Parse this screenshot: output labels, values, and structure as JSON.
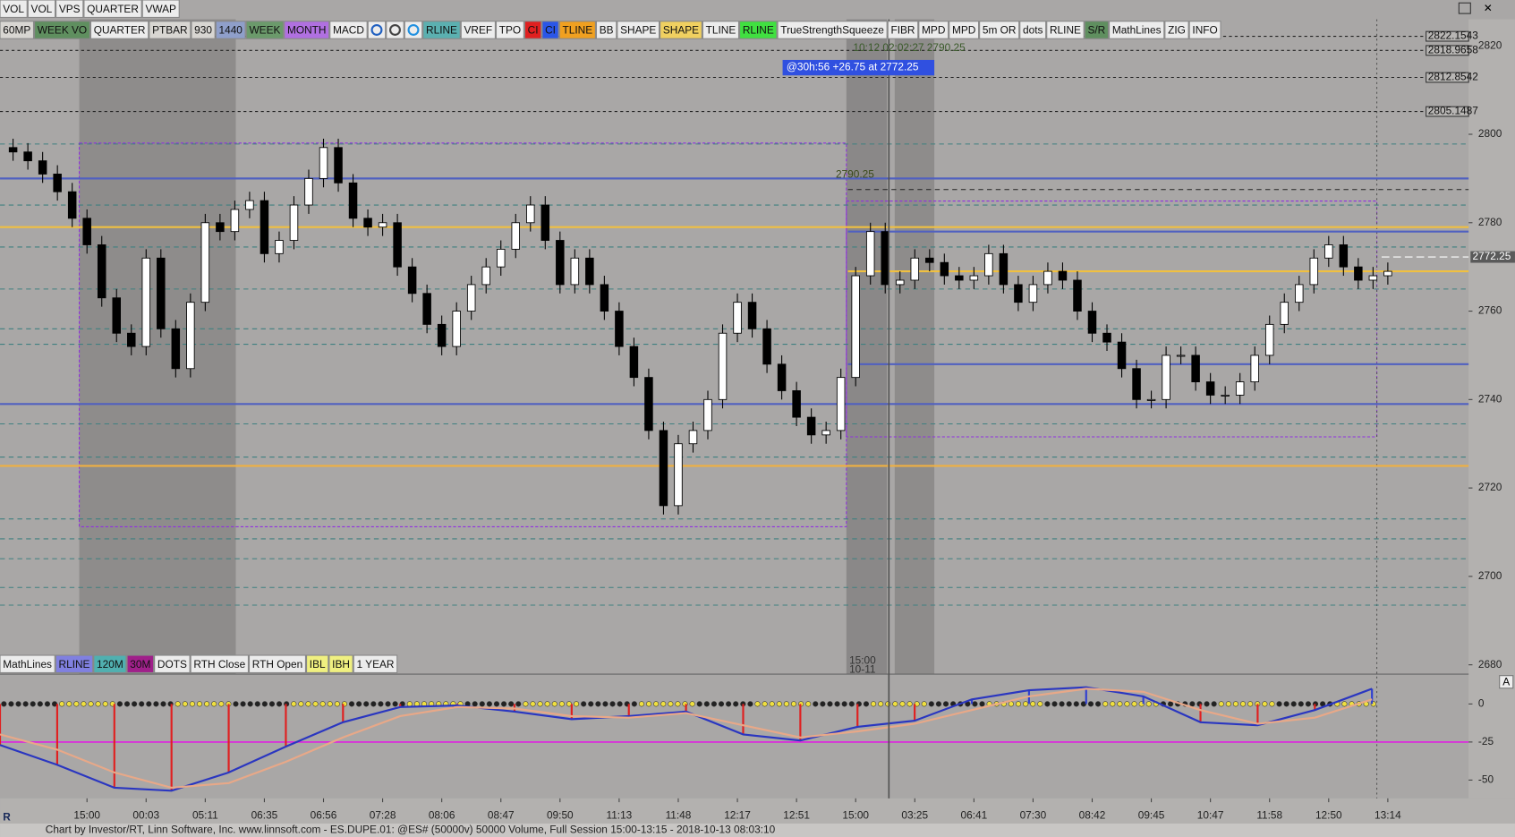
{
  "toolbar_top": [
    {
      "label": "VOL",
      "color": "#ececec"
    },
    {
      "label": "VOL",
      "color": "#ececec"
    },
    {
      "label": "VPS",
      "color": "#ececec"
    },
    {
      "label": "QUARTER",
      "color": "#ececec"
    },
    {
      "label": "VWAP",
      "color": "#ececec"
    }
  ],
  "toolbar_main": [
    {
      "label": "60MP",
      "color": "#d8d6d2"
    },
    {
      "label": "WEEK VO",
      "color": "#5f8f5f"
    },
    {
      "label": "QUARTER",
      "color": "#ececec"
    },
    {
      "label": "PTBAR",
      "color": "#d8d6d2"
    },
    {
      "label": "930",
      "color": "#d8d6d2"
    },
    {
      "label": "1440",
      "color": "#8f9fca"
    },
    {
      "label": "WEEK",
      "color": "#6b9a6b"
    },
    {
      "label": "MONTH",
      "color": "#b070e0"
    },
    {
      "label": "MACD",
      "color": "#ececec"
    },
    {
      "label": "RLINE",
      "color": "#5bb0b0"
    },
    {
      "label": "VREF",
      "color": "#ececec"
    },
    {
      "label": "TPO",
      "color": "#ececec"
    },
    {
      "label": "CI",
      "color": "#e02020"
    },
    {
      "label": "CI",
      "color": "#2a56e8"
    },
    {
      "label": "TLINE",
      "color": "#f0a020"
    },
    {
      "label": "BB",
      "color": "#ececec"
    },
    {
      "label": "SHAPE",
      "color": "#ececec"
    },
    {
      "label": "SHAPE",
      "color": "#f0d060"
    },
    {
      "label": "TLINE",
      "color": "#ececec"
    },
    {
      "label": "RLINE",
      "color": "#40e040"
    },
    {
      "label": "TrueStrengthSqueeze",
      "color": "#ececec"
    },
    {
      "label": "FIBR",
      "color": "#ececec"
    },
    {
      "label": "MPD",
      "color": "#ececec"
    },
    {
      "label": "MPD",
      "color": "#ececec"
    },
    {
      "label": "5m OR",
      "color": "#ececec"
    },
    {
      "label": "dots",
      "color": "#ececec"
    },
    {
      "label": "RLINE",
      "color": "#ececec"
    },
    {
      "label": "S/R",
      "color": "#5f8f5f"
    },
    {
      "label": "MathLines",
      "color": "#ececec"
    },
    {
      "label": "ZIG",
      "color": "#ececec"
    },
    {
      "label": "INFO",
      "color": "#ececec"
    }
  ],
  "toolbar_bottom": [
    {
      "label": "MathLines",
      "color": "#ececec"
    },
    {
      "label": "RLINE",
      "color": "#8080e0"
    },
    {
      "label": "120M",
      "color": "#50b0b0"
    },
    {
      "label": "30M",
      "color": "#a0208a"
    },
    {
      "label": "DOTS",
      "color": "#ececec"
    },
    {
      "label": "RTH Close",
      "color": "#ececec"
    },
    {
      "label": "RTH Open",
      "color": "#ececec"
    },
    {
      "label": "IBL",
      "color": "#f0f080"
    },
    {
      "label": "IBH",
      "color": "#f0f080"
    },
    {
      "label": "1 YEAR",
      "color": "#ececec"
    }
  ],
  "annotations": {
    "timer": "10:12 02:02:27 2790.25",
    "info": "@30h:56 +26.75 at 2772.25",
    "level": "2790.25",
    "session_time": "15:00",
    "session_date": "10-11",
    "axis_mode": "A"
  },
  "footer": "Chart by Investor/RT, Linn Software, Inc. www.linnsoft.com - ES.DUPE.01: @ES# (50000v) 50000 Volume, Full Session 15:00-13:15 - 2018-10-13 08:03:10",
  "logo": "R",
  "chart_data": [
    {
      "type": "candlestick",
      "up_color": "#ffffff",
      "down_color": "#000000",
      "categories": [
        null,
        null,
        null,
        null,
        null,
        "15:00",
        null,
        null,
        null,
        "00:03",
        null,
        null,
        null,
        "05:11",
        null,
        null,
        null,
        "06:35",
        null,
        null,
        null,
        "06:56",
        null,
        null,
        null,
        "07:28",
        null,
        null,
        null,
        "08:06",
        null,
        null,
        null,
        "08:47",
        null,
        null,
        null,
        "09:50",
        null,
        null,
        null,
        "11:13",
        null,
        null,
        null,
        "11:48",
        null,
        null,
        null,
        "12:17",
        null,
        null,
        null,
        "12:51",
        null,
        null,
        null,
        "15:00",
        null,
        null,
        null,
        "03:25",
        null,
        null,
        null,
        "06:41",
        null,
        null,
        null,
        "07:30",
        null,
        null,
        null,
        "08:42",
        null,
        null,
        null,
        "09:45",
        null,
        null,
        null,
        "10:47",
        null,
        null,
        null,
        "11:58",
        null,
        null,
        null,
        "12:50",
        null,
        null,
        null,
        "13:14"
      ],
      "open": [
        2797,
        2796,
        2794,
        2791,
        2787,
        2781,
        2775,
        2763,
        2755,
        2752,
        2772,
        2756,
        2747,
        2762,
        2780,
        2778,
        2783,
        2785,
        2773,
        2776,
        2784,
        2790,
        2797,
        2789,
        2781,
        2779,
        2780,
        2770,
        2764,
        2757,
        2752,
        2760,
        2766,
        2770,
        2774,
        2780,
        2784,
        2776,
        2766,
        2772,
        2766,
        2760,
        2752,
        2745,
        2733,
        2716,
        2730,
        2733,
        2740,
        2755,
        2762,
        2756,
        2748,
        2742,
        2736,
        2732,
        2733,
        2745,
        2768,
        2778,
        2766,
        2767,
        2772,
        2771,
        2768,
        2767,
        2768,
        2773,
        2766,
        2762,
        2766,
        2769,
        2767,
        2760,
        2755,
        2753,
        2747,
        2740,
        2740,
        2750,
        2750,
        2744,
        2741,
        2741,
        2744,
        2750,
        2757,
        2762,
        2766,
        2772,
        2775,
        2770,
        2767,
        2768
      ],
      "high": [
        2799,
        2798,
        2796,
        2793,
        2789,
        2783,
        2777,
        2765,
        2757,
        2774,
        2774,
        2758,
        2764,
        2782,
        2782,
        2785,
        2787,
        2787,
        2778,
        2786,
        2792,
        2799,
        2799,
        2791,
        2783,
        2782,
        2782,
        2772,
        2766,
        2759,
        2762,
        2768,
        2772,
        2776,
        2782,
        2786,
        2786,
        2778,
        2774,
        2774,
        2768,
        2762,
        2754,
        2747,
        2735,
        2732,
        2735,
        2742,
        2757,
        2764,
        2764,
        2758,
        2750,
        2744,
        2738,
        2735,
        2747,
        2770,
        2780,
        2780,
        2769,
        2774,
        2774,
        2773,
        2770,
        2770,
        2775,
        2775,
        2768,
        2768,
        2771,
        2771,
        2769,
        2762,
        2757,
        2755,
        2749,
        2742,
        2752,
        2752,
        2752,
        2746,
        2743,
        2746,
        2752,
        2759,
        2764,
        2768,
        2774,
        2777,
        2777,
        2772,
        2770,
        2771
      ],
      "low": [
        2794,
        2792,
        2789,
        2785,
        2779,
        2773,
        2761,
        2753,
        2750,
        2750,
        2754,
        2745,
        2745,
        2760,
        2776,
        2776,
        2781,
        2771,
        2771,
        2774,
        2782,
        2788,
        2787,
        2779,
        2777,
        2777,
        2768,
        2762,
        2755,
        2750,
        2750,
        2758,
        2764,
        2768,
        2772,
        2778,
        2774,
        2764,
        2764,
        2764,
        2758,
        2750,
        2743,
        2731,
        2714,
        2714,
        2728,
        2731,
        2738,
        2753,
        2754,
        2746,
        2740,
        2734,
        2730,
        2730,
        2731,
        2743,
        2766,
        2764,
        2764,
        2765,
        2769,
        2766,
        2765,
        2765,
        2766,
        2764,
        2760,
        2760,
        2764,
        2765,
        2758,
        2753,
        2751,
        2745,
        2738,
        2738,
        2738,
        2748,
        2742,
        2739,
        2739,
        2739,
        2742,
        2748,
        2755,
        2760,
        2764,
        2770,
        2768,
        2765,
        2765,
        2766
      ],
      "close": [
        2796,
        2794,
        2791,
        2787,
        2781,
        2775,
        2763,
        2755,
        2752,
        2772,
        2756,
        2747,
        2762,
        2780,
        2778,
        2783,
        2785,
        2773,
        2776,
        2784,
        2790,
        2797,
        2789,
        2781,
        2779,
        2780,
        2770,
        2764,
        2757,
        2752,
        2760,
        2766,
        2770,
        2774,
        2780,
        2784,
        2776,
        2766,
        2772,
        2766,
        2760,
        2752,
        2745,
        2733,
        2716,
        2730,
        2733,
        2740,
        2755,
        2762,
        2756,
        2748,
        2742,
        2736,
        2732,
        2733,
        2745,
        2768,
        2778,
        2766,
        2767,
        2772,
        2771,
        2768,
        2767,
        2768,
        2773,
        2766,
        2762,
        2766,
        2769,
        2767,
        2760,
        2755,
        2753,
        2747,
        2740,
        2740,
        2750,
        2750,
        2744,
        2741,
        2741,
        2744,
        2750,
        2757,
        2762,
        2766,
        2772,
        2775,
        2770,
        2767,
        2768,
        2769
      ],
      "ylim": [
        2678,
        2826
      ],
      "yticks": [
        2680,
        2700,
        2720,
        2740,
        2760,
        2780,
        2800,
        2820
      ],
      "last_price": 2772.25,
      "price_levels": [
        2822.1543,
        2818.9658,
        2812.8542,
        2805.1487
      ],
      "levels": [
        {
          "value": 2779,
          "color": "#f0c040",
          "dashed": false,
          "from": 0
        },
        {
          "value": 2725,
          "color": "#f0b040",
          "dashed": false,
          "from": 0
        },
        {
          "value": 2769,
          "color": "#f0c040",
          "dashed": false,
          "from": 57
        },
        {
          "value": 2790,
          "color": "#5060c0",
          "dashed": false,
          "from": 0
        },
        {
          "value": 2739,
          "color": "#5060c0",
          "dashed": false,
          "from": 0
        },
        {
          "value": 2748,
          "color": "#5060c0",
          "dashed": false,
          "from": 57
        },
        {
          "value": 2778,
          "color": "#5060c0",
          "dashed": false,
          "from": 57
        },
        {
          "value": 2787.5,
          "color": "#222222",
          "dashed": true,
          "from": 57
        },
        {
          "value": 2797.8,
          "color": "#3f8080",
          "dashed": true,
          "from": 0
        },
        {
          "value": 2784,
          "color": "#3f8080",
          "dashed": true,
          "from": 0
        },
        {
          "value": 2774.5,
          "color": "#3f8080",
          "dashed": true,
          "from": 0
        },
        {
          "value": 2765,
          "color": "#3f8080",
          "dashed": true,
          "from": 0
        },
        {
          "value": 2756,
          "color": "#3f8080",
          "dashed": true,
          "from": 0
        },
        {
          "value": 2752.5,
          "color": "#3f8080",
          "dashed": true,
          "from": 0
        },
        {
          "value": 2734.5,
          "color": "#3f8080",
          "dashed": true,
          "from": 0
        },
        {
          "value": 2727,
          "color": "#3f8080",
          "dashed": true,
          "from": 0
        },
        {
          "value": 2713,
          "color": "#3f8080",
          "dashed": true,
          "from": 0
        },
        {
          "value": 2708.5,
          "color": "#3f8080",
          "dashed": true,
          "from": 0
        },
        {
          "value": 2704,
          "color": "#3f8080",
          "dashed": true,
          "from": 0
        },
        {
          "value": 2697.5,
          "color": "#3f8080",
          "dashed": true,
          "from": 0
        },
        {
          "value": 2693.5,
          "color": "#3f8080",
          "dashed": true,
          "from": 0
        }
      ]
    },
    {
      "type": "line",
      "series": [
        {
          "color": "#2a36c0",
          "values": [
            -27,
            -40,
            -55,
            -57,
            -45,
            -28,
            -12,
            -2,
            -1,
            -5,
            -10,
            -8,
            -5,
            -20,
            -24,
            -15,
            -11,
            3,
            9,
            11,
            5,
            -12,
            -14,
            -4,
            10
          ]
        },
        {
          "color": "#e8a888",
          "values": [
            -20,
            -30,
            -45,
            -55,
            -52,
            -38,
            -22,
            -8,
            -2,
            -3,
            -8,
            -9,
            -6,
            -14,
            -22,
            -18,
            -13,
            -4,
            5,
            10,
            8,
            -4,
            -13,
            -9,
            3
          ]
        }
      ],
      "ylim": [
        -62,
        18
      ],
      "yticks": [
        0,
        -25,
        -50
      ],
      "level": {
        "value": -25,
        "color": "#e020e0"
      }
    }
  ]
}
